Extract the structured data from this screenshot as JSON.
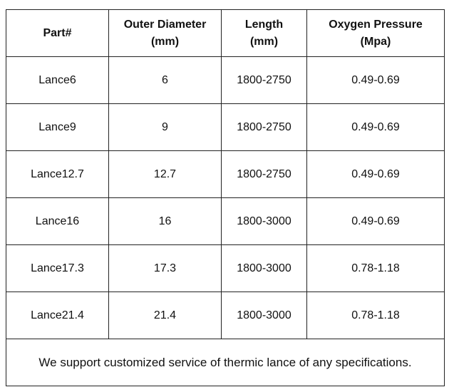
{
  "table": {
    "header": [
      "Part#",
      "Outer Diameter\n(mm)",
      "Length\n(mm)",
      "Oxygen Pressure\n(Mpa)"
    ],
    "rows": [
      [
        "Lance6",
        "6",
        "1800-2750",
        "0.49-0.69"
      ],
      [
        "Lance9",
        "9",
        "1800-2750",
        "0.49-0.69"
      ],
      [
        "Lance12.7",
        "12.7",
        "1800-2750",
        "0.49-0.69"
      ],
      [
        "Lance16",
        "16",
        "1800-3000",
        "0.49-0.69"
      ],
      [
        "Lance17.3",
        "17.3",
        "1800-3000",
        "0.78-1.18"
      ],
      [
        "Lance21.4",
        "21.4",
        "1800-3000",
        "0.78-1.18"
      ]
    ],
    "footer": "We support customized service of thermic lance of any specifications."
  }
}
